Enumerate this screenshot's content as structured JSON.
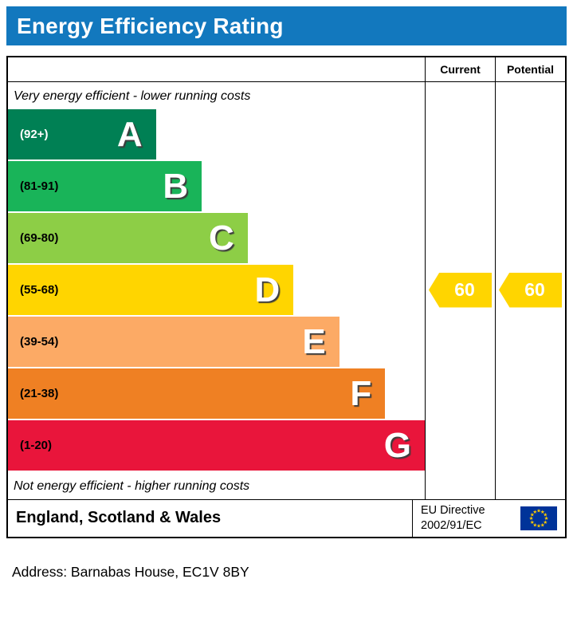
{
  "title": "Energy Efficiency Rating",
  "theme": {
    "header_bg": "#1278be",
    "header_text": "#ffffff",
    "border": "#000000"
  },
  "columns": {
    "current": "Current",
    "potential": "Potential"
  },
  "captions": {
    "top": "Very energy efficient - lower running costs",
    "bottom": "Not energy efficient - higher running costs"
  },
  "chart_data": {
    "type": "bar",
    "subtype": "epc-energy-efficiency-rating",
    "title": "Energy Efficiency Rating",
    "bands": [
      {
        "letter": "A",
        "range": "(92+)",
        "color": "#008054",
        "label_color": "#ffffff",
        "width_pct": 35.5
      },
      {
        "letter": "B",
        "range": "(81-91)",
        "color": "#19b459",
        "label_color": "#000000",
        "width_pct": 46.5
      },
      {
        "letter": "C",
        "range": "(69-80)",
        "color": "#8dce46",
        "label_color": "#000000",
        "width_pct": 57.5
      },
      {
        "letter": "D",
        "range": "(55-68)",
        "color": "#ffd500",
        "label_color": "#000000",
        "width_pct": 68.5
      },
      {
        "letter": "E",
        "range": "(39-54)",
        "color": "#fcaa65",
        "label_color": "#000000",
        "width_pct": 79.5
      },
      {
        "letter": "F",
        "range": "(21-38)",
        "color": "#ef8023",
        "label_color": "#000000",
        "width_pct": 90.5
      },
      {
        "letter": "G",
        "range": "(1-20)",
        "color": "#e9153b",
        "label_color": "#000000",
        "width_pct": 100
      }
    ],
    "current": {
      "label": "Current",
      "value": 60,
      "band": "D",
      "color": "#ffd500",
      "text_color": "#ffffff"
    },
    "potential": {
      "label": "Potential",
      "value": 60,
      "band": "D",
      "color": "#ffd500",
      "text_color": "#ffffff"
    }
  },
  "footer": {
    "region": "England, Scotland & Wales",
    "directive_line1": "EU Directive",
    "directive_line2": "2002/91/EC",
    "flag": {
      "name": "eu-flag-icon",
      "background": "#003399",
      "star_color": "#ffcc00",
      "star_glyph": "★",
      "star_count": 12
    }
  },
  "address_line": "Address: Barnabas House, EC1V 8BY"
}
